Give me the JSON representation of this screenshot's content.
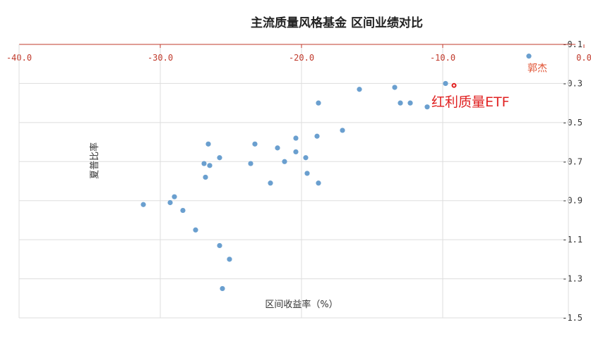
{
  "chart_data": {
    "type": "scatter",
    "title": "主流质量风格基金  区间业绩对比",
    "xlabel": "区间收益率（%）",
    "ylabel": "夏普比率",
    "xlim": [
      -40,
      0
    ],
    "ylim": [
      -1.5,
      -0.1
    ],
    "x_ticks": [
      -40,
      -30,
      -20,
      -10,
      0
    ],
    "x_tick_labels": [
      "-40.0",
      "-30.0",
      "-20.0",
      "-10.0",
      "0.0"
    ],
    "y_ticks": [
      -0.1,
      -0.3,
      -0.5,
      -0.7,
      -0.9,
      -1.1,
      -1.3,
      -1.5
    ],
    "y_tick_labels": [
      "0.1",
      "0.3",
      "0.5",
      "0.7",
      "0.9",
      "1.1",
      "1.3",
      "1.5"
    ],
    "grid": true,
    "point_color": "#6a9fcf",
    "highlight_color": "#e02020",
    "points": [
      {
        "x": -3.9,
        "y": -0.16,
        "label": "郭杰"
      },
      {
        "x": -9.2,
        "y": -0.31,
        "label": "红利质量ETF",
        "highlight": true
      },
      {
        "x": -9.8,
        "y": -0.3
      },
      {
        "x": -11.1,
        "y": -0.42
      },
      {
        "x": -12.3,
        "y": -0.4
      },
      {
        "x": -13.0,
        "y": -0.4
      },
      {
        "x": -13.4,
        "y": -0.32
      },
      {
        "x": -15.9,
        "y": -0.33
      },
      {
        "x": -17.1,
        "y": -0.54
      },
      {
        "x": -18.8,
        "y": -0.4
      },
      {
        "x": -18.9,
        "y": -0.57
      },
      {
        "x": -18.8,
        "y": -0.81
      },
      {
        "x": -19.6,
        "y": -0.76
      },
      {
        "x": -19.7,
        "y": -0.68
      },
      {
        "x": -20.4,
        "y": -0.65
      },
      {
        "x": -20.4,
        "y": -0.58
      },
      {
        "x": -21.2,
        "y": -0.7
      },
      {
        "x": -21.7,
        "y": -0.63
      },
      {
        "x": -22.2,
        "y": -0.81
      },
      {
        "x": -23.3,
        "y": -0.61
      },
      {
        "x": -23.6,
        "y": -0.71
      },
      {
        "x": -25.8,
        "y": -0.68
      },
      {
        "x": -26.5,
        "y": -0.72
      },
      {
        "x": -26.6,
        "y": -0.61
      },
      {
        "x": -26.8,
        "y": -0.78
      },
      {
        "x": -26.9,
        "y": -0.71
      },
      {
        "x": -27.5,
        "y": -1.05
      },
      {
        "x": -28.4,
        "y": -0.95
      },
      {
        "x": -29.0,
        "y": -0.88
      },
      {
        "x": -29.3,
        "y": -0.91
      },
      {
        "x": -31.2,
        "y": -0.92
      },
      {
        "x": -25.8,
        "y": -1.13
      },
      {
        "x": -25.1,
        "y": -1.2
      },
      {
        "x": -25.6,
        "y": -1.35
      }
    ]
  }
}
